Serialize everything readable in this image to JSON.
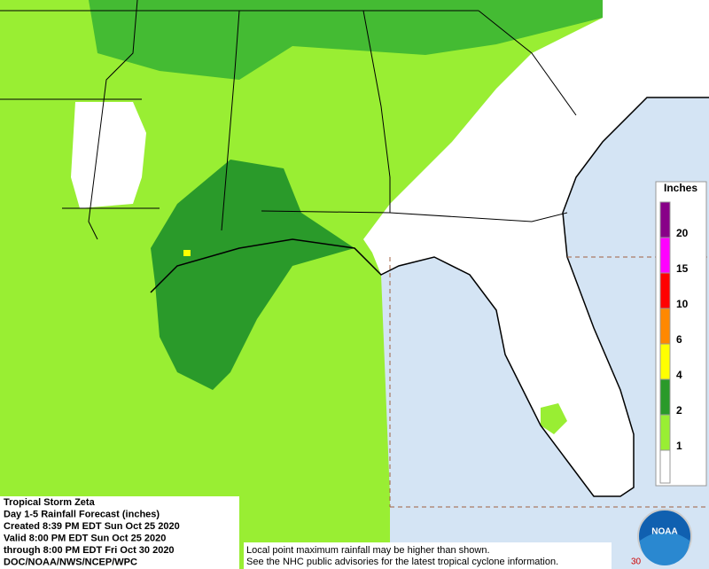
{
  "header": {
    "lines": [
      "Tropical Storm Zeta",
      "Day 1-5 Rainfall Forecast (inches)",
      "Created 8:39 PM EDT Sun Oct 25 2020",
      "Valid 8:00 PM EDT Sun Oct 25 2020",
      "through 8:00 PM EDT Fri Oct 30 2020",
      "DOC/NOAA/NWS/NCEP/WPC"
    ]
  },
  "legend": {
    "title": "Inches",
    "items": [
      {
        "label": 1,
        "color": "#99ee33"
      },
      {
        "label": 2,
        "color": "#2a9a2a"
      },
      {
        "label": 4,
        "color": "#ffff00"
      },
      {
        "label": 6,
        "color": "#ff8800"
      },
      {
        "label": 10,
        "color": "#ff0000"
      },
      {
        "label": 15,
        "color": "#ff00ff"
      },
      {
        "label": 20,
        "color": "#880088"
      }
    ]
  },
  "footnote": {
    "lines": [
      "Local point maximum rainfall may be higher than shown.",
      "See the NHC public advisories for the latest tropical cyclone information."
    ]
  },
  "logo": {
    "text": "NOAA"
  },
  "corner_label": "30"
}
